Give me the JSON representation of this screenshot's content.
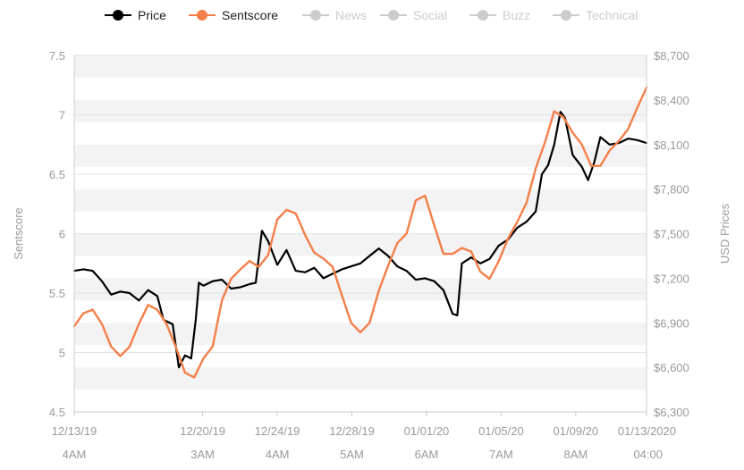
{
  "chart_data": {
    "type": "line",
    "legend": {
      "placement": "top-center",
      "items": [
        {
          "name": "Price",
          "color": "#000000",
          "active": true
        },
        {
          "name": "Sentscore",
          "color": "#f47f4a",
          "active": true
        },
        {
          "name": "News",
          "color": "#cccccc",
          "active": false
        },
        {
          "name": "Social",
          "color": "#cccccc",
          "active": false
        },
        {
          "name": "Buzz",
          "color": "#cccccc",
          "active": false
        },
        {
          "name": "Technical",
          "color": "#cccccc",
          "active": false
        }
      ]
    },
    "y_left": {
      "label": "Sentscore",
      "range": [
        4.5,
        7.5
      ],
      "ticks": [
        "4.5",
        "5",
        "5.5",
        "6",
        "6.5",
        "7",
        "7.5"
      ]
    },
    "y_right": {
      "label": "USD Prices",
      "range": [
        6300,
        8700
      ],
      "ticks": [
        "$6,300",
        "$6,600",
        "$6,900",
        "$7,200",
        "$7,500",
        "$7,800",
        "$8,100",
        "$8,400",
        "$8,700"
      ]
    },
    "x_axis": {
      "range": [
        "2019-12-13T04:00",
        "2020-01-13T04:00"
      ],
      "ticks": [
        {
          "at": "2019-12-13T04:00",
          "line1": "12/13/19",
          "line2": "4AM"
        },
        {
          "at": "2019-12-20T03:00",
          "line1": "12/20/19",
          "line2": "3AM"
        },
        {
          "at": "2019-12-24T04:00",
          "line1": "12/24/19",
          "line2": "4AM"
        },
        {
          "at": "2019-12-28T05:00",
          "line1": "12/28/19",
          "line2": "5AM"
        },
        {
          "at": "2020-01-01T06:00",
          "line1": "01/01/20",
          "line2": "6AM"
        },
        {
          "at": "2020-01-05T07:00",
          "line1": "01/05/20",
          "line2": "7AM"
        },
        {
          "at": "2020-01-09T08:00",
          "line1": "01/09/20",
          "line2": "8AM"
        },
        {
          "at": "2020-01-13T04:00",
          "line1": "01/13/2020",
          "line2": "04:00"
        }
      ]
    },
    "grid": true,
    "series": [
      {
        "name": "Price",
        "axis": "right",
        "color": "#000000",
        "points": [
          [
            "2019-12-13T04:00",
            7250
          ],
          [
            "2019-12-13T16:00",
            7260
          ],
          [
            "2019-12-14T04:00",
            7250
          ],
          [
            "2019-12-14T16:00",
            7180
          ],
          [
            "2019-12-15T04:00",
            7090
          ],
          [
            "2019-12-15T16:00",
            7110
          ],
          [
            "2019-12-16T04:00",
            7100
          ],
          [
            "2019-12-16T16:00",
            7050
          ],
          [
            "2019-12-17T04:00",
            7120
          ],
          [
            "2019-12-17T16:00",
            7080
          ],
          [
            "2019-12-18T00:00",
            6920
          ],
          [
            "2019-12-18T12:00",
            6890
          ],
          [
            "2019-12-18T20:00",
            6600
          ],
          [
            "2019-12-19T04:00",
            6680
          ],
          [
            "2019-12-19T12:00",
            6660
          ],
          [
            "2019-12-19T18:00",
            6920
          ],
          [
            "2019-12-19T22:00",
            7170
          ],
          [
            "2019-12-20T04:00",
            7150
          ],
          [
            "2019-12-20T16:00",
            7180
          ],
          [
            "2019-12-21T04:00",
            7190
          ],
          [
            "2019-12-21T16:00",
            7130
          ],
          [
            "2019-12-22T04:00",
            7140
          ],
          [
            "2019-12-22T16:00",
            7160
          ],
          [
            "2019-12-23T00:00",
            7170
          ],
          [
            "2019-12-23T08:00",
            7520
          ],
          [
            "2019-12-23T16:00",
            7450
          ],
          [
            "2019-12-24T04:00",
            7290
          ],
          [
            "2019-12-24T16:00",
            7390
          ],
          [
            "2019-12-25T04:00",
            7250
          ],
          [
            "2019-12-25T16:00",
            7240
          ],
          [
            "2019-12-26T04:00",
            7270
          ],
          [
            "2019-12-26T16:00",
            7200
          ],
          [
            "2019-12-27T04:00",
            7230
          ],
          [
            "2019-12-27T16:00",
            7260
          ],
          [
            "2019-12-28T04:00",
            7280
          ],
          [
            "2019-12-28T16:00",
            7300
          ],
          [
            "2019-12-29T04:00",
            7350
          ],
          [
            "2019-12-29T16:00",
            7400
          ],
          [
            "2019-12-30T04:00",
            7350
          ],
          [
            "2019-12-30T16:00",
            7280
          ],
          [
            "2019-12-31T04:00",
            7250
          ],
          [
            "2019-12-31T16:00",
            7190
          ],
          [
            "2020-01-01T04:00",
            7200
          ],
          [
            "2020-01-01T16:00",
            7180
          ],
          [
            "2020-01-02T04:00",
            7120
          ],
          [
            "2020-01-02T16:00",
            6960
          ],
          [
            "2020-01-02T22:00",
            6950
          ],
          [
            "2020-01-03T04:00",
            7300
          ],
          [
            "2020-01-03T16:00",
            7340
          ],
          [
            "2020-01-04T04:00",
            7300
          ],
          [
            "2020-01-04T16:00",
            7330
          ],
          [
            "2020-01-05T04:00",
            7420
          ],
          [
            "2020-01-05T16:00",
            7460
          ],
          [
            "2020-01-06T04:00",
            7540
          ],
          [
            "2020-01-06T16:00",
            7580
          ],
          [
            "2020-01-07T04:00",
            7650
          ],
          [
            "2020-01-07T12:00",
            7900
          ],
          [
            "2020-01-07T20:00",
            7960
          ],
          [
            "2020-01-08T04:00",
            8100
          ],
          [
            "2020-01-08T12:00",
            8320
          ],
          [
            "2020-01-08T18:00",
            8280
          ],
          [
            "2020-01-09T04:00",
            8030
          ],
          [
            "2020-01-09T16:00",
            7950
          ],
          [
            "2020-01-10T00:00",
            7860
          ],
          [
            "2020-01-10T08:00",
            7980
          ],
          [
            "2020-01-10T16:00",
            8150
          ],
          [
            "2020-01-11T04:00",
            8100
          ],
          [
            "2020-01-11T16:00",
            8110
          ],
          [
            "2020-01-12T04:00",
            8140
          ],
          [
            "2020-01-12T16:00",
            8130
          ],
          [
            "2020-01-13T04:00",
            8110
          ]
        ]
      },
      {
        "name": "Sentscore",
        "axis": "left",
        "color": "#f47f4a",
        "points": [
          [
            "2019-12-13T04:00",
            5.22
          ],
          [
            "2019-12-13T16:00",
            5.33
          ],
          [
            "2019-12-14T04:00",
            5.36
          ],
          [
            "2019-12-14T16:00",
            5.24
          ],
          [
            "2019-12-15T04:00",
            5.05
          ],
          [
            "2019-12-15T16:00",
            4.97
          ],
          [
            "2019-12-16T04:00",
            5.05
          ],
          [
            "2019-12-16T16:00",
            5.24
          ],
          [
            "2019-12-17T04:00",
            5.4
          ],
          [
            "2019-12-17T16:00",
            5.36
          ],
          [
            "2019-12-18T04:00",
            5.24
          ],
          [
            "2019-12-18T16:00",
            5.05
          ],
          [
            "2019-12-19T04:00",
            4.83
          ],
          [
            "2019-12-19T16:00",
            4.79
          ],
          [
            "2019-12-20T04:00",
            4.95
          ],
          [
            "2019-12-20T16:00",
            5.05
          ],
          [
            "2019-12-21T04:00",
            5.44
          ],
          [
            "2019-12-21T16:00",
            5.62
          ],
          [
            "2019-12-22T04:00",
            5.7
          ],
          [
            "2019-12-22T16:00",
            5.77
          ],
          [
            "2019-12-23T04:00",
            5.72
          ],
          [
            "2019-12-23T16:00",
            5.82
          ],
          [
            "2019-12-24T04:00",
            6.12
          ],
          [
            "2019-12-24T16:00",
            6.2
          ],
          [
            "2019-12-25T04:00",
            6.17
          ],
          [
            "2019-12-25T16:00",
            5.99
          ],
          [
            "2019-12-26T04:00",
            5.84
          ],
          [
            "2019-12-26T16:00",
            5.79
          ],
          [
            "2019-12-27T04:00",
            5.72
          ],
          [
            "2019-12-27T16:00",
            5.48
          ],
          [
            "2019-12-28T04:00",
            5.25
          ],
          [
            "2019-12-28T16:00",
            5.17
          ],
          [
            "2019-12-29T04:00",
            5.25
          ],
          [
            "2019-12-29T16:00",
            5.52
          ],
          [
            "2019-12-30T04:00",
            5.73
          ],
          [
            "2019-12-30T16:00",
            5.92
          ],
          [
            "2019-12-31T04:00",
            6.0
          ],
          [
            "2019-12-31T16:00",
            6.28
          ],
          [
            "2020-01-01T04:00",
            6.32
          ],
          [
            "2020-01-01T16:00",
            6.07
          ],
          [
            "2020-01-02T04:00",
            5.83
          ],
          [
            "2020-01-02T16:00",
            5.83
          ],
          [
            "2020-01-03T04:00",
            5.88
          ],
          [
            "2020-01-03T16:00",
            5.85
          ],
          [
            "2020-01-04T04:00",
            5.68
          ],
          [
            "2020-01-04T16:00",
            5.62
          ],
          [
            "2020-01-05T04:00",
            5.77
          ],
          [
            "2020-01-05T16:00",
            5.96
          ],
          [
            "2020-01-06T04:00",
            6.1
          ],
          [
            "2020-01-06T16:00",
            6.26
          ],
          [
            "2020-01-07T04:00",
            6.55
          ],
          [
            "2020-01-07T16:00",
            6.77
          ],
          [
            "2020-01-08T04:00",
            7.03
          ],
          [
            "2020-01-08T16:00",
            6.98
          ],
          [
            "2020-01-09T04:00",
            6.85
          ],
          [
            "2020-01-09T16:00",
            6.75
          ],
          [
            "2020-01-10T04:00",
            6.57
          ],
          [
            "2020-01-10T16:00",
            6.57
          ],
          [
            "2020-01-11T04:00",
            6.7
          ],
          [
            "2020-01-11T16:00",
            6.78
          ],
          [
            "2020-01-12T04:00",
            6.88
          ],
          [
            "2020-01-12T16:00",
            7.06
          ],
          [
            "2020-01-13T04:00",
            7.23
          ]
        ]
      }
    ]
  }
}
